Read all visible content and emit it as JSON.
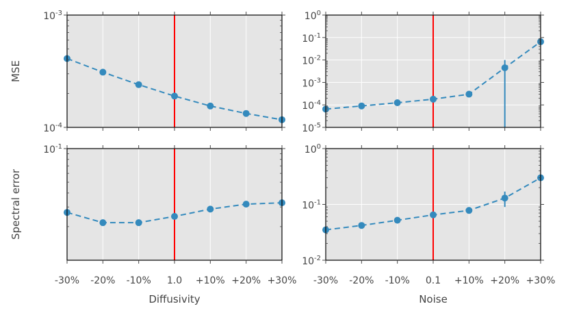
{
  "chart_data": [
    {
      "type": "line",
      "panel": "top-left",
      "ylabel": "MSE",
      "xlabel": "",
      "yscale": "log",
      "ylim": [
        0.0001,
        0.001
      ],
      "yticks": [
        {
          "value": 0.001,
          "label": "10^-3"
        },
        {
          "value": 0.0001,
          "label": "10^-4"
        }
      ],
      "categories": [
        "-30%",
        "-20%",
        "-10%",
        "1.0",
        "+10%",
        "+20%",
        "+30%"
      ],
      "show_xtick_labels": false,
      "reference_category": "1.0",
      "series": [
        {
          "values": [
            0.00041,
            0.00031,
            0.00024,
            0.00019,
            0.000155,
            0.000133,
            0.000117
          ],
          "errors": [
            1.2e-05,
            1.2e-05,
            1e-05,
            1e-05,
            7e-06,
            6e-06,
            5e-06
          ],
          "color": "#348ABD"
        }
      ],
      "grid": true
    },
    {
      "type": "line",
      "panel": "top-right",
      "ylabel": "",
      "xlabel": "",
      "yscale": "log",
      "ylim": [
        1e-05,
        1
      ],
      "yticks": [
        {
          "value": 1,
          "label": "10^0"
        },
        {
          "value": 0.1,
          "label": "10^-1"
        },
        {
          "value": 0.01,
          "label": "10^-2"
        },
        {
          "value": 0.001,
          "label": "10^-3"
        },
        {
          "value": 0.0001,
          "label": "10^-4"
        },
        {
          "value": 1e-05,
          "label": "10^-5"
        }
      ],
      "categories": [
        "-30%",
        "-20%",
        "-10%",
        "0.1",
        "+10%",
        "+20%",
        "+30%"
      ],
      "show_xtick_labels": false,
      "reference_category": "0.1",
      "series": [
        {
          "values": [
            6.5e-05,
            9e-05,
            0.000125,
            0.00018,
            0.0003,
            0.0045,
            0.065
          ],
          "errors": [
            0,
            0,
            0,
            0,
            0,
            0.0055,
            0
          ],
          "color": "#348ABD"
        }
      ],
      "grid": true
    },
    {
      "type": "line",
      "panel": "bottom-left",
      "ylabel": "Spectral error",
      "xlabel": "Diffusivity",
      "yscale": "log",
      "ylim": [
        0.01,
        0.1
      ],
      "yticks": [
        {
          "value": 0.1,
          "label": "10^-1"
        }
      ],
      "categories": [
        "-30%",
        "-20%",
        "-10%",
        "1.0",
        "+10%",
        "+20%",
        "+30%"
      ],
      "show_xtick_labels": true,
      "reference_category": "1.0",
      "series": [
        {
          "values": [
            0.0268,
            0.0217,
            0.0217,
            0.0247,
            0.0287,
            0.0318,
            0.0327
          ],
          "errors": [
            0.0005,
            0.0012,
            0.0013,
            0.0007,
            0.0012,
            0.0008,
            0.0005
          ],
          "color": "#348ABD"
        }
      ],
      "grid": true
    },
    {
      "type": "line",
      "panel": "bottom-right",
      "ylabel": "",
      "xlabel": "Noise",
      "yscale": "log",
      "ylim": [
        0.01,
        1
      ],
      "yticks": [
        {
          "value": 1,
          "label": "10^0"
        },
        {
          "value": 0.1,
          "label": "10^-1"
        },
        {
          "value": 0.01,
          "label": "10^-2"
        }
      ],
      "categories": [
        "-30%",
        "-20%",
        "-10%",
        "0.1",
        "+10%",
        "+20%",
        "+30%"
      ],
      "show_xtick_labels": true,
      "reference_category": "0.1",
      "series": [
        {
          "values": [
            0.035,
            0.042,
            0.052,
            0.065,
            0.078,
            0.13,
            0.3
          ],
          "errors": [
            0,
            0,
            0,
            0,
            0.003,
            0.04,
            0
          ],
          "color": "#348ABD"
        }
      ],
      "grid": true
    }
  ],
  "colors": {
    "axes_background": "#E5E5E5",
    "grid": "#ffffff",
    "series": "#348ABD",
    "reference_line": "#FF0000"
  }
}
